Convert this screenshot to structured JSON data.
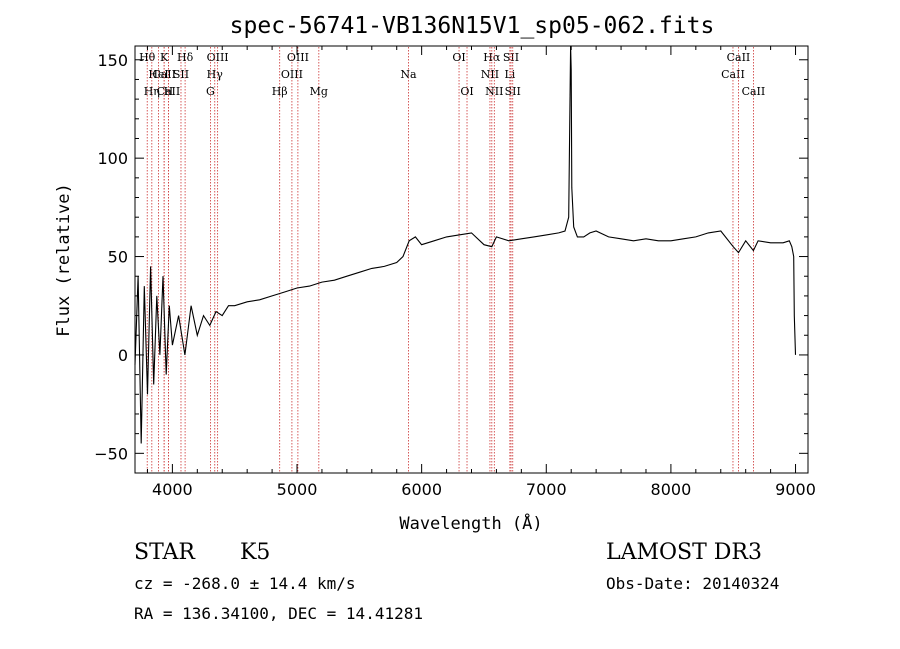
{
  "chart_data": {
    "type": "line",
    "title": "spec-56741-VB136N15V1_sp05-062.fits",
    "xlabel": "Wavelength (Å)",
    "ylabel": "Flux (relative)",
    "xlim": [
      3700,
      9100
    ],
    "ylim": [
      -60,
      157
    ],
    "xticks": [
      4000,
      5000,
      6000,
      7000,
      8000,
      9000
    ],
    "yticks": [
      -50,
      0,
      50,
      100,
      150
    ],
    "grid": false,
    "line_color": "#000000",
    "marker_line_color": "#cc3333",
    "series": [
      {
        "x": [
          3700,
          3725,
          3750,
          3775,
          3800,
          3825,
          3850,
          3875,
          3900,
          3925,
          3950,
          3975,
          4000,
          4050,
          4100,
          4150,
          4200,
          4250,
          4300,
          4350,
          4400,
          4450,
          4500,
          4600,
          4700,
          4800,
          4900,
          5000,
          5100,
          5200,
          5300,
          5400,
          5500,
          5600,
          5700,
          5800,
          5850,
          5900,
          5950,
          6000,
          6100,
          6200,
          6300,
          6400,
          6500,
          6563,
          6600,
          6700,
          6800,
          6900,
          7000,
          7100,
          7150,
          7180,
          7195,
          7200,
          7205,
          7220,
          7250,
          7300,
          7350,
          7400,
          7500,
          7600,
          7700,
          7800,
          7900,
          8000,
          8100,
          8200,
          8300,
          8400,
          8500,
          8542,
          8600,
          8662,
          8700,
          8800,
          8900,
          8950,
          8970,
          8985,
          8990,
          9000
        ],
        "y": [
          -5,
          40,
          -45,
          35,
          -20,
          45,
          -15,
          30,
          0,
          40,
          -10,
          25,
          5,
          20,
          0,
          25,
          10,
          20,
          15,
          22,
          20,
          25,
          25,
          27,
          28,
          30,
          32,
          34,
          35,
          37,
          38,
          40,
          42,
          44,
          45,
          47,
          50,
          58,
          60,
          56,
          58,
          60,
          61,
          62,
          56,
          55,
          60,
          58,
          59,
          60,
          61,
          62,
          63,
          70,
          157,
          145,
          85,
          65,
          60,
          60,
          62,
          63,
          60,
          59,
          58,
          59,
          58,
          58,
          59,
          60,
          62,
          63,
          55,
          52,
          58,
          53,
          58,
          57,
          57,
          58,
          55,
          50,
          20,
          0
        ]
      }
    ],
    "line_markers": [
      {
        "label": "Hθ",
        "x": 3798,
        "row": 1
      },
      {
        "label": "CaII",
        "x": 3934,
        "row": 2
      },
      {
        "label": "CaII",
        "x": 3968,
        "row": 3
      },
      {
        "label": "HeI",
        "x": 3889,
        "row": 2
      },
      {
        "label": "Hη",
        "x": 3835,
        "row": 3
      },
      {
        "label": "K",
        "x": 3934,
        "row": 1
      },
      {
        "label": "H",
        "x": 3968,
        "row": 3
      },
      {
        "label": "Hδ",
        "x": 4102,
        "row": 1
      },
      {
        "label": "SII",
        "x": 4069,
        "row": 2
      },
      {
        "label": "OIII",
        "x": 4363,
        "row": 1
      },
      {
        "label": "Hγ",
        "x": 4340,
        "row": 2
      },
      {
        "label": "G",
        "x": 4305,
        "row": 3
      },
      {
        "label": "Hβ",
        "x": 4861,
        "row": 3
      },
      {
        "label": "OIII",
        "x": 4959,
        "row": 2
      },
      {
        "label": "OIII",
        "x": 5007,
        "row": 1
      },
      {
        "label": "Mg",
        "x": 5175,
        "row": 3
      },
      {
        "label": "Na",
        "x": 5894,
        "row": 2
      },
      {
        "label": "OI",
        "x": 6300,
        "row": 1
      },
      {
        "label": "OI",
        "x": 6364,
        "row": 3
      },
      {
        "label": "Hα",
        "x": 6563,
        "row": 1
      },
      {
        "label": "NII",
        "x": 6548,
        "row": 2
      },
      {
        "label": "NII",
        "x": 6583,
        "row": 3
      },
      {
        "label": "SII",
        "x": 6717,
        "row": 1
      },
      {
        "label": "Li",
        "x": 6708,
        "row": 2
      },
      {
        "label": "SII",
        "x": 6731,
        "row": 3
      },
      {
        "label": "CaII",
        "x": 8498,
        "row": 2
      },
      {
        "label": "CaII",
        "x": 8542,
        "row": 1
      },
      {
        "label": "CaII",
        "x": 8662,
        "row": 3
      }
    ]
  },
  "info": {
    "object_class": "STAR",
    "subclass": "K5",
    "survey": "LAMOST DR3",
    "velocity": "cz = -268.0 ± 14.4 km/s",
    "obs_date": "Obs-Date: 20140324",
    "coords": "RA = 136.34100, DEC =  14.41281"
  }
}
